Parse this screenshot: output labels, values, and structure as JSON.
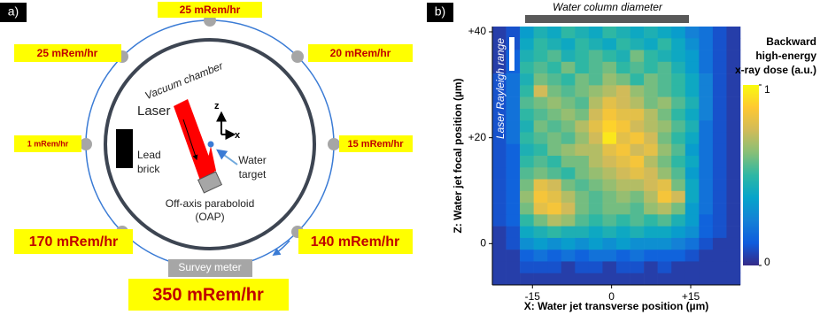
{
  "panel_a": {
    "label": "a)",
    "doses": [
      "25 mRem/hr",
      "25 mRem/hr",
      "20 mRem/hr",
      "1 mRem/hr",
      "15 mRem/hr",
      "170 mRem/hr",
      "140 mRem/hr",
      "350 mRem/hr"
    ],
    "survey_meter": "Survey meter",
    "vacuum_chamber": "Vacuum chamber",
    "laser": "Laser",
    "lead_brick": [
      "Lead",
      "brick"
    ],
    "water_target": [
      "Water",
      "target"
    ],
    "oap": [
      "Off-axis paraboloid",
      "(OAP)"
    ],
    "axes": [
      "z",
      "x"
    ]
  },
  "chart_data": {
    "type": "heatmap",
    "label": "b)",
    "xlabel": "X: Water jet transverse position (µm)",
    "ylabel": "Z: Water jet focal position (µm)",
    "annotations": [
      "Water column diameter",
      "Laser Rayleigh range"
    ],
    "xlim": [
      -22.6,
      24.4
    ],
    "ylim": [
      -7.8,
      41
    ],
    "xticks": [
      -15,
      0,
      {
        "value": 15,
        "label": "+15"
      }
    ],
    "yticks": [
      0,
      {
        "value": 20,
        "label": "+20"
      },
      {
        "value": 40,
        "label": "+40"
      }
    ],
    "colors": [
      "#352a87",
      "#0f5cdd",
      "#1481d6",
      "#06a4ca",
      "#2eb7a4",
      "#87bf77",
      "#d1bb59",
      "#fec832",
      "#f9fb0e"
    ],
    "clim": [
      0,
      1
    ],
    "cticks": [
      0,
      1
    ],
    "colorbar_title": [
      "Backward",
      "high-energy",
      "x-ray dose (a.u.)"
    ],
    "values": [
      [
        0.05,
        0.1,
        0.35,
        0.45,
        0.4,
        0.5,
        0.45,
        0.4,
        0.5,
        0.45,
        0.4,
        0.45,
        0.4,
        0.35,
        0.25,
        0.2,
        0.1,
        0.05
      ],
      [
        0.05,
        0.1,
        0.4,
        0.5,
        0.45,
        0.4,
        0.5,
        0.45,
        0.4,
        0.5,
        0.45,
        0.4,
        0.5,
        0.4,
        0.3,
        0.2,
        0.1,
        0.05
      ],
      [
        0.05,
        0.15,
        0.45,
        0.5,
        0.55,
        0.45,
        0.5,
        0.55,
        0.5,
        0.45,
        0.6,
        0.5,
        0.45,
        0.4,
        0.35,
        0.2,
        0.1,
        0.05
      ],
      [
        0.05,
        0.15,
        0.5,
        0.55,
        0.5,
        0.6,
        0.5,
        0.55,
        0.6,
        0.5,
        0.55,
        0.5,
        0.55,
        0.45,
        0.35,
        0.2,
        0.1,
        0.05
      ],
      [
        0.1,
        0.2,
        0.45,
        0.6,
        0.55,
        0.5,
        0.6,
        0.55,
        0.65,
        0.6,
        0.5,
        0.6,
        0.55,
        0.5,
        0.4,
        0.25,
        0.1,
        0.05
      ],
      [
        0.1,
        0.2,
        0.5,
        0.75,
        0.6,
        0.55,
        0.6,
        0.65,
        0.7,
        0.75,
        0.65,
        0.6,
        0.55,
        0.5,
        0.4,
        0.25,
        0.1,
        0.05
      ],
      [
        0.1,
        0.2,
        0.55,
        0.6,
        0.65,
        0.6,
        0.55,
        0.7,
        0.8,
        0.75,
        0.7,
        0.6,
        0.65,
        0.55,
        0.45,
        0.25,
        0.1,
        0.05
      ],
      [
        0.1,
        0.2,
        0.5,
        0.55,
        0.6,
        0.65,
        0.6,
        0.75,
        0.85,
        0.8,
        0.8,
        0.7,
        0.6,
        0.5,
        0.4,
        0.25,
        0.1,
        0.05
      ],
      [
        0.1,
        0.2,
        0.45,
        0.6,
        0.55,
        0.6,
        0.7,
        0.8,
        0.9,
        0.85,
        0.75,
        0.7,
        0.65,
        0.55,
        0.45,
        0.2,
        0.1,
        0.05
      ],
      [
        0.1,
        0.2,
        0.5,
        0.55,
        0.6,
        0.55,
        0.65,
        0.75,
        0.95,
        0.8,
        0.85,
        0.75,
        0.6,
        0.5,
        0.4,
        0.2,
        0.1,
        0.05
      ],
      [
        0.1,
        0.15,
        0.45,
        0.5,
        0.6,
        0.65,
        0.7,
        0.7,
        0.8,
        0.85,
        0.75,
        0.8,
        0.65,
        0.55,
        0.35,
        0.2,
        0.1,
        0.05
      ],
      [
        0.1,
        0.15,
        0.5,
        0.55,
        0.5,
        0.6,
        0.6,
        0.7,
        0.75,
        0.8,
        0.85,
        0.7,
        0.6,
        0.5,
        0.4,
        0.2,
        0.1,
        0.05
      ],
      [
        0.1,
        0.15,
        0.55,
        0.6,
        0.55,
        0.5,
        0.6,
        0.65,
        0.7,
        0.75,
        0.8,
        0.75,
        0.65,
        0.55,
        0.35,
        0.2,
        0.1,
        0.05
      ],
      [
        0.1,
        0.15,
        0.6,
        0.8,
        0.75,
        0.6,
        0.55,
        0.6,
        0.65,
        0.7,
        0.7,
        0.75,
        0.8,
        0.6,
        0.4,
        0.2,
        0.1,
        0.05
      ],
      [
        0.1,
        0.15,
        0.65,
        0.85,
        0.8,
        0.7,
        0.6,
        0.55,
        0.6,
        0.65,
        0.6,
        0.7,
        0.85,
        0.75,
        0.4,
        0.2,
        0.1,
        0.05
      ],
      [
        0.1,
        0.15,
        0.6,
        0.8,
        0.85,
        0.75,
        0.6,
        0.55,
        0.6,
        0.6,
        0.55,
        0.65,
        0.7,
        0.6,
        0.35,
        0.2,
        0.1,
        0.05
      ],
      [
        0.1,
        0.15,
        0.5,
        0.6,
        0.7,
        0.65,
        0.55,
        0.5,
        0.55,
        0.5,
        0.55,
        0.5,
        0.55,
        0.45,
        0.35,
        0.15,
        0.1,
        0.05
      ],
      [
        0.05,
        0.1,
        0.4,
        0.45,
        0.5,
        0.45,
        0.45,
        0.4,
        0.45,
        0.4,
        0.45,
        0.4,
        0.4,
        0.35,
        0.3,
        0.15,
        0.1,
        0.05
      ],
      [
        0.05,
        0.1,
        0.3,
        0.35,
        0.3,
        0.35,
        0.3,
        0.35,
        0.3,
        0.35,
        0.3,
        0.3,
        0.3,
        0.25,
        0.2,
        0.1,
        0.05,
        0.05
      ],
      [
        0.05,
        0.05,
        0.15,
        0.2,
        0.15,
        0.2,
        0.15,
        0.2,
        0.2,
        0.15,
        0.2,
        0.15,
        0.15,
        0.15,
        0.1,
        0.05,
        0.05,
        0.05
      ],
      [
        0.05,
        0.05,
        0.1,
        0.1,
        0.1,
        0.05,
        0.1,
        0.1,
        0.05,
        0.1,
        0.1,
        0.05,
        0.1,
        0.05,
        0.05,
        0.05,
        0.05,
        0.05
      ],
      [
        0.05,
        0.05,
        0.05,
        0.05,
        0.05,
        0.05,
        0.05,
        0.05,
        0.05,
        0.05,
        0.05,
        0.05,
        0.05,
        0.05,
        0.05,
        0.05,
        0.05,
        0.05
      ]
    ]
  }
}
